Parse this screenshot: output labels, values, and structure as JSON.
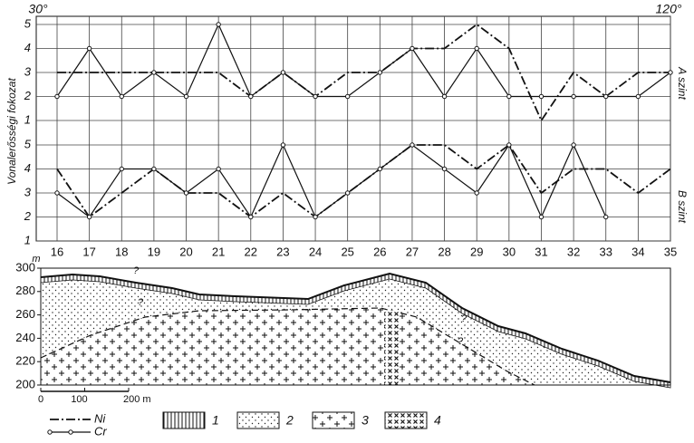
{
  "chart_data": {
    "type": "line",
    "corner_left": "30°",
    "corner_right": "120°",
    "y_label": "Vonalerősségi fokozat",
    "categories": [
      "16",
      "17",
      "18",
      "19",
      "20",
      "21",
      "22",
      "23",
      "24",
      "25",
      "26",
      "27",
      "28",
      "29",
      "30",
      "31",
      "32",
      "33",
      "34",
      "35"
    ],
    "ylim": [
      1,
      5
    ],
    "yticks": [
      1,
      2,
      3,
      4,
      5
    ],
    "grid": true,
    "panels": [
      {
        "label": "A szint"
      },
      {
        "label": "B szint"
      }
    ],
    "series": [
      {
        "name": "Ni",
        "color": "#111111",
        "dash": "dashdot",
        "marker": false,
        "values": [
          [
            3,
            3,
            3,
            3,
            3,
            3,
            2,
            3,
            2,
            3,
            3,
            4,
            4,
            5,
            4,
            1,
            3,
            2,
            3,
            3
          ],
          [
            4,
            2,
            3,
            4,
            3,
            3,
            2,
            3,
            2,
            3,
            4,
            5,
            5,
            4,
            5,
            3,
            4,
            4,
            3,
            4
          ]
        ]
      },
      {
        "name": "Cr",
        "color": "#111111",
        "dash": "solid",
        "marker": true,
        "values": [
          [
            2,
            4,
            2,
            3,
            2,
            5,
            2,
            3,
            2,
            2,
            3,
            4,
            2,
            4,
            2,
            2,
            2,
            2,
            2,
            3
          ],
          [
            3,
            2,
            4,
            4,
            3,
            4,
            2,
            5,
            2,
            3,
            4,
            5,
            4,
            3,
            5,
            2,
            5,
            2,
            null,
            null
          ]
        ]
      }
    ]
  },
  "section": {
    "y_unit": "m",
    "ylim": [
      200,
      300
    ],
    "yticks": [
      200,
      220,
      240,
      260,
      280,
      300
    ],
    "scale_lim": [
      0,
      200
    ],
    "scale_ticks": [
      0,
      100,
      {
        "value": 200,
        "label": "200 m"
      }
    ],
    "legend": [
      "1",
      "2",
      "3",
      "4"
    ],
    "annotations": [
      "?",
      "?",
      "?",
      "?"
    ]
  }
}
